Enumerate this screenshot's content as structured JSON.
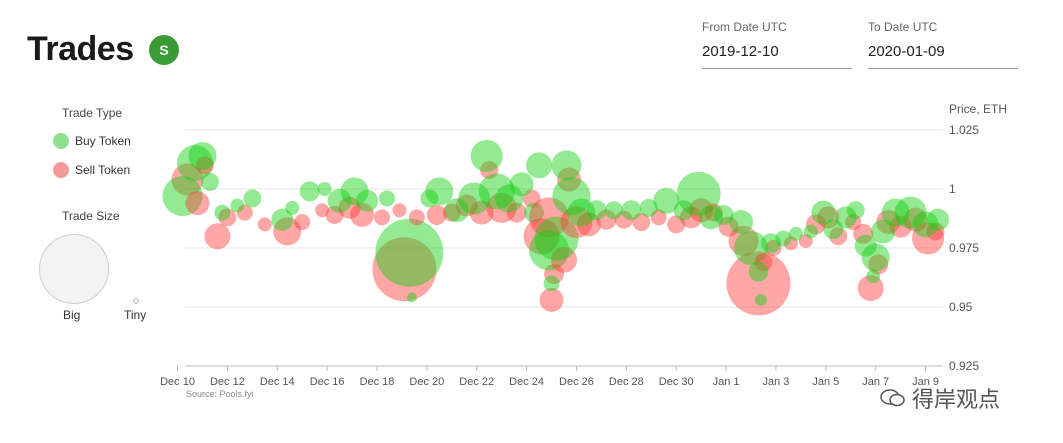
{
  "header": {
    "title": "Trades",
    "logo_text": "S"
  },
  "from_date": {
    "label": "From Date UTC",
    "value": "2019-12-10"
  },
  "to_date": {
    "label": "To Date UTC",
    "value": "2020-01-09"
  },
  "legend": {
    "trade_type_title": "Trade Type",
    "buy_label": "Buy Token",
    "sell_label": "Sell Token",
    "trade_size_title": "Trade Size",
    "big_label": "Big",
    "tiny_label": "Tiny"
  },
  "colors": {
    "buy": "#10d010",
    "sell": "#ff3a3a",
    "buy_legend": "#8ee08e",
    "sell_legend": "#f59a9a"
  },
  "source": "Source: Pools.fyi",
  "watermark": "得岸观点",
  "chart_data": {
    "type": "scatter",
    "ylabel": "Price, ETH",
    "ylim": [
      0.925,
      1.025
    ],
    "yticks": [
      0.925,
      0.95,
      0.975,
      1,
      1.025
    ],
    "ytick_labels": [
      "0.925",
      "0.95",
      "0.975",
      "1",
      "1.025"
    ],
    "xlim": [
      10.3,
      40.7
    ],
    "xticks": [
      10,
      12,
      14,
      16,
      18,
      20,
      22,
      24,
      26,
      28,
      30,
      32,
      34,
      36,
      38,
      40
    ],
    "xtick_labels": [
      "Dec 10",
      "Dec 12",
      "Dec 14",
      "Dec 16",
      "Dec 18",
      "Dec 20",
      "Dec 22",
      "Dec 24",
      "Dec 26",
      "Dec 28",
      "Dec 30",
      "Jan 1",
      "Jan 3",
      "Jan 5",
      "Jan 7",
      "Jan 9"
    ],
    "grid": true,
    "series": [
      {
        "name": "Buy Token",
        "points": [
          [
            10.2,
            0.997,
            20
          ],
          [
            10.7,
            1.011,
            18
          ],
          [
            11.0,
            1.014,
            14
          ],
          [
            11.3,
            1.003,
            9
          ],
          [
            11.8,
            0.99,
            8
          ],
          [
            12.4,
            0.993,
            7
          ],
          [
            13.0,
            0.996,
            9
          ],
          [
            14.2,
            0.987,
            11
          ],
          [
            14.6,
            0.992,
            7
          ],
          [
            15.3,
            0.999,
            10
          ],
          [
            15.9,
            1.0,
            7
          ],
          [
            16.5,
            0.995,
            12
          ],
          [
            17.1,
            0.999,
            14
          ],
          [
            17.6,
            0.995,
            11
          ],
          [
            18.4,
            0.996,
            8
          ],
          [
            19.3,
            0.973,
            34
          ],
          [
            19.4,
            0.954,
            5
          ],
          [
            20.1,
            0.996,
            9
          ],
          [
            20.5,
            0.999,
            14
          ],
          [
            21.2,
            0.991,
            12
          ],
          [
            21.9,
            0.996,
            16
          ],
          [
            22.4,
            1.014,
            16
          ],
          [
            22.8,
            0.999,
            18
          ],
          [
            23.3,
            0.996,
            14
          ],
          [
            23.8,
            1.002,
            12
          ],
          [
            24.3,
            0.99,
            10
          ],
          [
            24.5,
            1.01,
            13
          ],
          [
            24.9,
            0.974,
            20
          ],
          [
            25.0,
            0.96,
            8
          ],
          [
            25.2,
            0.979,
            22
          ],
          [
            25.6,
            1.01,
            15
          ],
          [
            25.8,
            0.997,
            19
          ],
          [
            26.2,
            0.99,
            14
          ],
          [
            26.8,
            0.991,
            10
          ],
          [
            27.5,
            0.991,
            9
          ],
          [
            28.2,
            0.991,
            10
          ],
          [
            28.9,
            0.992,
            9
          ],
          [
            29.6,
            0.995,
            13
          ],
          [
            30.3,
            0.991,
            10
          ],
          [
            30.9,
            0.998,
            22
          ],
          [
            31.4,
            0.988,
            12
          ],
          [
            31.9,
            0.989,
            10
          ],
          [
            32.6,
            0.986,
            12
          ],
          [
            33.0,
            0.975,
            17
          ],
          [
            33.3,
            0.965,
            10
          ],
          [
            33.4,
            0.953,
            6
          ],
          [
            33.8,
            0.977,
            10
          ],
          [
            34.3,
            0.979,
            8
          ],
          [
            34.8,
            0.981,
            7
          ],
          [
            35.4,
            0.982,
            7
          ],
          [
            35.9,
            0.99,
            12
          ],
          [
            36.3,
            0.983,
            10
          ],
          [
            36.8,
            0.988,
            11
          ],
          [
            37.2,
            0.991,
            9
          ],
          [
            37.6,
            0.976,
            11
          ],
          [
            38.0,
            0.971,
            14
          ],
          [
            37.9,
            0.963,
            7
          ],
          [
            38.3,
            0.982,
            12
          ],
          [
            38.8,
            0.99,
            14
          ],
          [
            39.4,
            0.99,
            16
          ],
          [
            40.0,
            0.985,
            13
          ],
          [
            40.5,
            0.987,
            11
          ]
        ]
      },
      {
        "name": "Sell Token",
        "points": [
          [
            10.4,
            1.004,
            16
          ],
          [
            10.8,
            0.994,
            12
          ],
          [
            11.1,
            1.01,
            9
          ],
          [
            11.6,
            0.98,
            13
          ],
          [
            12.0,
            0.988,
            9
          ],
          [
            12.7,
            0.99,
            8
          ],
          [
            13.5,
            0.985,
            7
          ],
          [
            14.4,
            0.982,
            14
          ],
          [
            15.0,
            0.986,
            8
          ],
          [
            15.8,
            0.991,
            7
          ],
          [
            16.3,
            0.989,
            9
          ],
          [
            16.9,
            0.992,
            11
          ],
          [
            17.4,
            0.989,
            12
          ],
          [
            18.2,
            0.988,
            8
          ],
          [
            18.9,
            0.991,
            7
          ],
          [
            19.1,
            0.966,
            32
          ],
          [
            19.6,
            0.988,
            8
          ],
          [
            20.4,
            0.989,
            10
          ],
          [
            21.0,
            0.99,
            9
          ],
          [
            21.6,
            0.993,
            11
          ],
          [
            22.2,
            0.99,
            12
          ],
          [
            22.5,
            1.008,
            9
          ],
          [
            23.0,
            0.992,
            15
          ],
          [
            23.6,
            0.99,
            10
          ],
          [
            24.2,
            0.996,
            9
          ],
          [
            24.6,
            0.98,
            18
          ],
          [
            24.9,
            0.988,
            20
          ],
          [
            25.1,
            0.964,
            10
          ],
          [
            25.0,
            0.953,
            12
          ],
          [
            25.5,
            0.97,
            13
          ],
          [
            25.7,
            1.004,
            12
          ],
          [
            26.0,
            0.986,
            16
          ],
          [
            26.5,
            0.985,
            12
          ],
          [
            27.2,
            0.987,
            10
          ],
          [
            27.9,
            0.987,
            9
          ],
          [
            28.6,
            0.986,
            9
          ],
          [
            29.3,
            0.988,
            8
          ],
          [
            30.0,
            0.985,
            9
          ],
          [
            30.6,
            0.988,
            11
          ],
          [
            31.0,
            0.991,
            12
          ],
          [
            31.5,
            0.99,
            9
          ],
          [
            32.1,
            0.984,
            10
          ],
          [
            32.7,
            0.978,
            15
          ],
          [
            33.3,
            0.96,
            32
          ],
          [
            33.5,
            0.969,
            9
          ],
          [
            33.9,
            0.975,
            8
          ],
          [
            34.6,
            0.977,
            7
          ],
          [
            35.2,
            0.978,
            7
          ],
          [
            35.6,
            0.985,
            10
          ],
          [
            36.1,
            0.988,
            11
          ],
          [
            36.5,
            0.98,
            9
          ],
          [
            37.1,
            0.986,
            8
          ],
          [
            37.5,
            0.981,
            10
          ],
          [
            37.8,
            0.958,
            13
          ],
          [
            38.1,
            0.968,
            10
          ],
          [
            38.5,
            0.986,
            12
          ],
          [
            39.0,
            0.984,
            11
          ],
          [
            39.6,
            0.987,
            12
          ],
          [
            40.1,
            0.979,
            16
          ],
          [
            40.4,
            0.982,
            9
          ]
        ]
      }
    ]
  }
}
